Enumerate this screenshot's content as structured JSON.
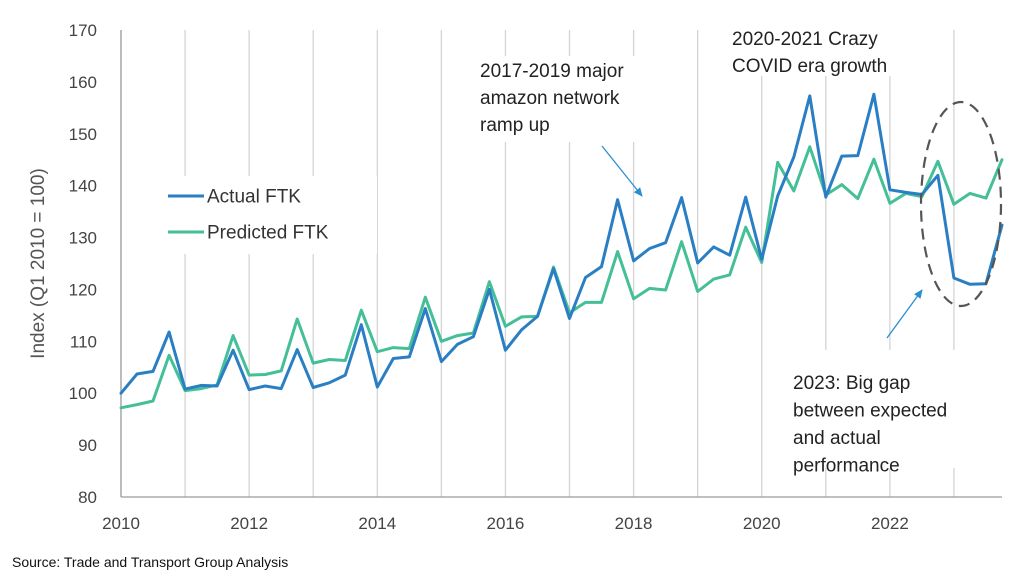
{
  "chart_data": {
    "type": "line",
    "ylabel": "Index (Q1 2010 = 100)",
    "xlabel": "",
    "ylim": [
      80,
      170
    ],
    "yticks": [
      80,
      90,
      100,
      110,
      120,
      130,
      140,
      150,
      160,
      170
    ],
    "xlim": [
      2010,
      2023.75
    ],
    "xticks": [
      "2010",
      "2012",
      "2014",
      "2016",
      "2018",
      "2020",
      "2022"
    ],
    "grid": "vertical",
    "legend": "left",
    "x": [
      2010,
      2010.25,
      2010.5,
      2010.75,
      2011,
      2011.25,
      2011.5,
      2011.75,
      2012,
      2012.25,
      2012.5,
      2012.75,
      2013,
      2013.25,
      2013.5,
      2013.75,
      2014,
      2014.25,
      2014.5,
      2014.75,
      2015,
      2015.25,
      2015.5,
      2015.75,
      2016,
      2016.25,
      2016.5,
      2016.75,
      2017,
      2017.25,
      2017.5,
      2017.75,
      2018,
      2018.25,
      2018.5,
      2018.75,
      2019,
      2019.25,
      2019.5,
      2019.75,
      2020,
      2020.25,
      2020.5,
      2020.75,
      2021,
      2021.25,
      2021.5,
      2021.75,
      2022,
      2022.25,
      2022.5,
      2022.75,
      2023,
      2023.25,
      2023.5,
      2023.75
    ],
    "series": [
      {
        "name": "Actual FTK",
        "color": "#2a7fc4",
        "values": [
          100,
          103.7,
          104.2,
          111.8,
          100.8,
          101.5,
          101.4,
          108.3,
          100.7,
          101.4,
          100.9,
          108.4,
          101.1,
          102,
          103.5,
          113.2,
          101.2,
          106.7,
          107,
          116.3,
          106.1,
          109.4,
          110.9,
          120,
          108.3,
          112.2,
          114.8,
          124,
          114.4,
          122.3,
          124.4,
          137.3,
          125.5,
          127.9,
          129,
          137.7,
          125.1,
          128.2,
          126.6,
          137.8,
          125.8,
          138,
          145.5,
          157.3,
          137.8,
          145.7,
          145.8,
          157.6,
          139.2,
          138.7,
          138.3,
          142,
          122.2,
          121,
          121.1,
          132.4
        ]
      },
      {
        "name": "Predicted FTK",
        "color": "#44bf97",
        "values": [
          97.2,
          97.8,
          98.5,
          107.3,
          100.5,
          100.9,
          101.6,
          111.1,
          103.5,
          103.6,
          104.3,
          114.3,
          105.8,
          106.5,
          106.3,
          116,
          108,
          108.8,
          108.6,
          118.5,
          110,
          111.1,
          111.6,
          121.5,
          112.9,
          114.7,
          114.8,
          124.3,
          115.5,
          117.5,
          117.5,
          127.3,
          118.2,
          120.2,
          119.9,
          129.2,
          119.6,
          122,
          122.8,
          132,
          125.2,
          144.5,
          139,
          147.5,
          138.2,
          140.2,
          137.5,
          145.1,
          136.6,
          138.5,
          137.9,
          144.7,
          136.4,
          138.5,
          137.6,
          145
        ]
      }
    ],
    "annotations": [
      {
        "lines": [
          "2017-2019  major",
          "amazon network",
          "ramp up"
        ]
      },
      {
        "lines": [
          "2020-2021  Crazy",
          "COVID era growth"
        ]
      },
      {
        "lines": [
          "2023: Big gap",
          "between expected",
          "and actual",
          "performance"
        ]
      }
    ]
  },
  "source": "Source: Trade and Transport Group Analysis"
}
